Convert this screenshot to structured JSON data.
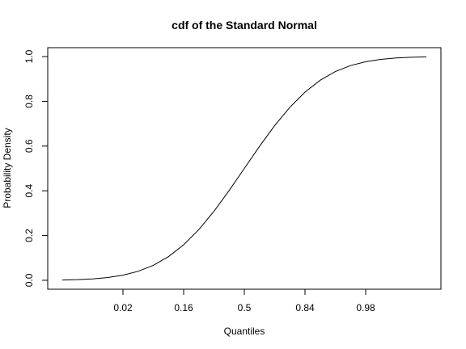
{
  "chart_data": {
    "type": "line",
    "title": "cdf of the Standard Normal",
    "xlabel": "Quantiles",
    "ylabel": "Probability Density",
    "x_ticks": [
      {
        "value": -2,
        "label": "0.02"
      },
      {
        "value": -1,
        "label": "0.16"
      },
      {
        "value": 0,
        "label": "0.5"
      },
      {
        "value": 1,
        "label": "0.84"
      },
      {
        "value": 2,
        "label": "0.98"
      }
    ],
    "y_ticks": [
      {
        "value": 0.0,
        "label": "0.0"
      },
      {
        "value": 0.2,
        "label": "0.2"
      },
      {
        "value": 0.4,
        "label": "0.4"
      },
      {
        "value": 0.6,
        "label": "0.6"
      },
      {
        "value": 0.8,
        "label": "0.8"
      },
      {
        "value": 1.0,
        "label": "1.0"
      }
    ],
    "xlim": [
      -3.24,
      3.24
    ],
    "ylim": [
      -0.04,
      1.04
    ],
    "grid": false,
    "series": [
      {
        "color": "#000000",
        "x": [
          -3,
          -2.75,
          -2.5,
          -2.25,
          -2,
          -1.75,
          -1.5,
          -1.25,
          -1,
          -0.75,
          -0.5,
          -0.25,
          0,
          0.25,
          0.5,
          0.75,
          1,
          1.25,
          1.5,
          1.75,
          2,
          2.25,
          2.5,
          2.75,
          3
        ],
        "y": [
          0.0013,
          0.003,
          0.0062,
          0.0122,
          0.0228,
          0.0401,
          0.0668,
          0.1056,
          0.1587,
          0.2266,
          0.3085,
          0.4013,
          0.5,
          0.5987,
          0.6915,
          0.7734,
          0.8413,
          0.8944,
          0.9332,
          0.9599,
          0.9772,
          0.9878,
          0.9938,
          0.997,
          0.9987
        ]
      }
    ]
  }
}
